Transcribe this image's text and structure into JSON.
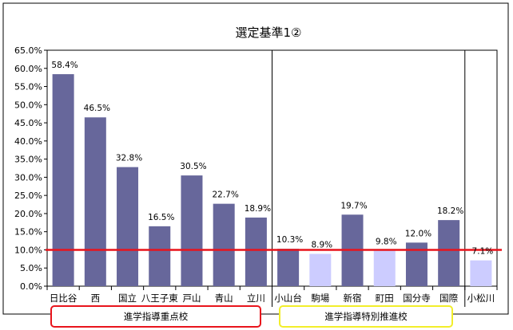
{
  "chart_data": {
    "type": "bar",
    "title": "選定基準1②",
    "xlabel": "",
    "ylabel": "",
    "ylim": [
      0,
      65
    ],
    "y_ticks": [
      "0.0%",
      "5.0%",
      "10.0%",
      "15.0%",
      "20.0%",
      "25.0%",
      "30.0%",
      "35.0%",
      "40.0%",
      "45.0%",
      "50.0%",
      "55.0%",
      "60.0%",
      "65.0%"
    ],
    "categories": [
      "日比谷",
      "西",
      "国立",
      "八王子東",
      "戸山",
      "青山",
      "立川",
      "小山台",
      "駒場",
      "新宿",
      "町田",
      "国分寺",
      "国際",
      "小松川"
    ],
    "values": [
      58.4,
      46.5,
      32.8,
      16.5,
      30.5,
      22.7,
      18.9,
      10.3,
      8.9,
      19.7,
      9.8,
      12.0,
      18.2,
      7.1
    ],
    "data_labels": [
      "58.4%",
      "46.5%",
      "32.8%",
      "16.5%",
      "30.5%",
      "22.7%",
      "18.9%",
      "10.3%",
      "8.9%",
      "19.7%",
      "9.8%",
      "12.0%",
      "18.2%",
      "7.1%"
    ],
    "highlight": [
      false,
      false,
      false,
      false,
      false,
      false,
      false,
      false,
      true,
      false,
      true,
      false,
      false,
      true
    ],
    "reference_line": 10,
    "groups": [
      {
        "label": "進学指導重点校",
        "border_color": "#e8141c"
      },
      {
        "label": "進学指導特別推進校",
        "border_color": "#f2ee2a"
      }
    ],
    "grid": false,
    "colors": {
      "bar": "#67679b",
      "bar_highlight": "#ccccff",
      "reference_line": "#e8141c"
    }
  }
}
